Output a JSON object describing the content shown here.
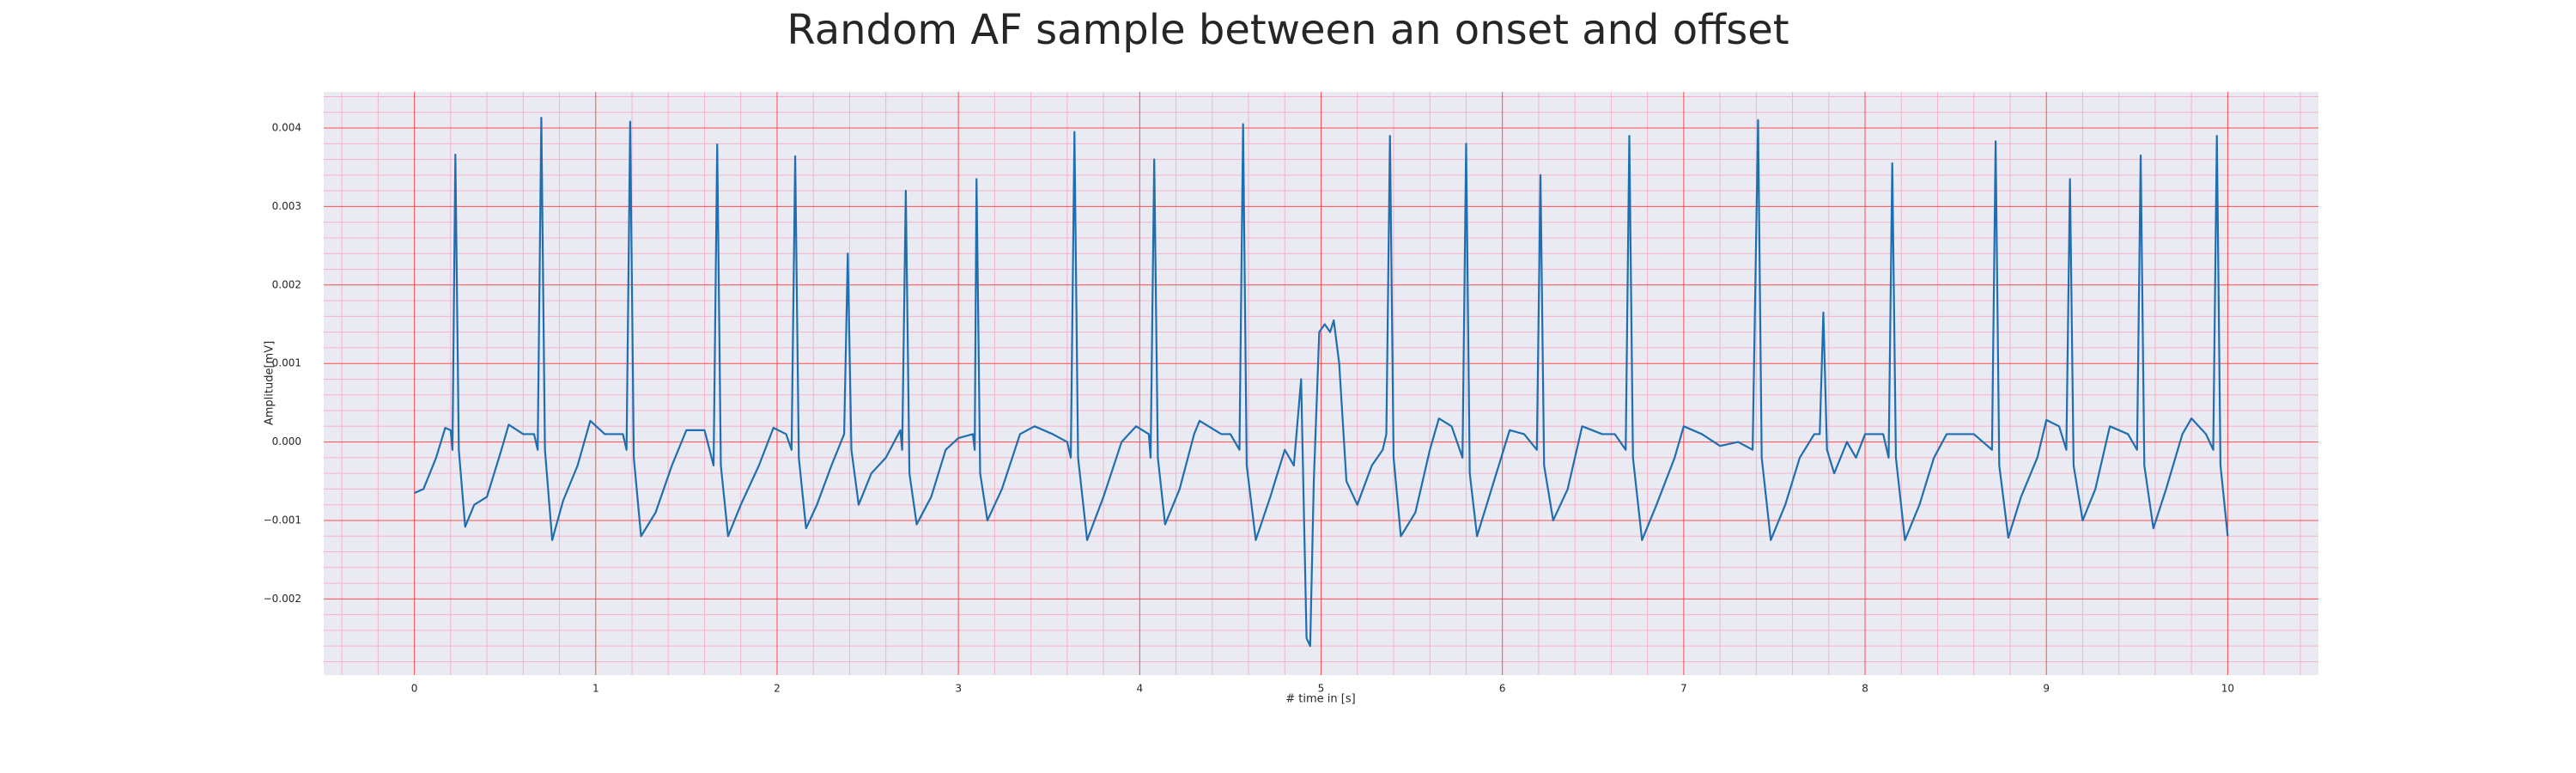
{
  "chart_data": {
    "type": "line",
    "title": "Random AF sample between an onset and offset",
    "x_label": "# time in [s]",
    "y_label": "Amplitude[mV]",
    "xlim": [
      -0.5,
      10.5
    ],
    "ylim": [
      -0.00297,
      0.00446
    ],
    "xticks": [
      0,
      1,
      2,
      3,
      4,
      5,
      6,
      7,
      8,
      9,
      10
    ],
    "yticks": [
      {
        "value": -0.002,
        "label": "−0.002"
      },
      {
        "value": -0.001,
        "label": "−0.001"
      },
      {
        "value": 0,
        "label": "0.000"
      },
      0.001,
      0.002,
      0.003,
      0.004
    ],
    "grid": true,
    "grid_color": "#ff4d4d",
    "minor_grid_divisions": 5,
    "minor_grid_color": "#f4b3c8",
    "background": "#eaeaf2",
    "series": [
      {
        "color": "#1f6fb0",
        "x": [
          0,
          0.05,
          0.12,
          0.17,
          0.2,
          0.21,
          0.226,
          0.245,
          0.28,
          0.33,
          0.4,
          0.48,
          0.52,
          0.6,
          0.66,
          0.68,
          0.7,
          0.72,
          0.76,
          0.82,
          0.9,
          0.97,
          1.05,
          1.15,
          1.17,
          1.19,
          1.21,
          1.25,
          1.33,
          1.42,
          1.5,
          1.6,
          1.65,
          1.67,
          1.69,
          1.73,
          1.8,
          1.9,
          1.98,
          2.05,
          2.08,
          2.1,
          2.12,
          2.16,
          2.22,
          2.3,
          2.37,
          2.39,
          2.41,
          2.45,
          2.52,
          2.6,
          2.68,
          2.69,
          2.71,
          2.73,
          2.77,
          2.85,
          2.93,
          3.0,
          3.08,
          3.09,
          3.1,
          3.12,
          3.16,
          3.24,
          3.34,
          3.42,
          3.52,
          3.6,
          3.62,
          3.64,
          3.66,
          3.71,
          3.8,
          3.9,
          3.98,
          4.05,
          4.06,
          4.08,
          4.1,
          4.14,
          4.22,
          4.3,
          4.33,
          4.45,
          4.5,
          4.55,
          4.57,
          4.59,
          4.64,
          4.72,
          4.8,
          4.85,
          4.89,
          4.92,
          4.94,
          4.96,
          4.99,
          5.02,
          5.05,
          5.07,
          5.1,
          5.14,
          5.2,
          5.28,
          5.34,
          5.36,
          5.38,
          5.4,
          5.44,
          5.52,
          5.6,
          5.65,
          5.72,
          5.78,
          5.8,
          5.82,
          5.86,
          5.94,
          6.04,
          6.12,
          6.19,
          6.21,
          6.23,
          6.28,
          6.36,
          6.44,
          6.55,
          6.62,
          6.68,
          6.7,
          6.72,
          6.77,
          6.85,
          6.95,
          7.0,
          7.1,
          7.2,
          7.3,
          7.38,
          7.41,
          7.43,
          7.48,
          7.56,
          7.64,
          7.72,
          7.75,
          7.77,
          7.79,
          7.83,
          7.9,
          7.95,
          8.0,
          8.1,
          8.13,
          8.15,
          8.17,
          8.22,
          8.3,
          8.38,
          8.45,
          8.6,
          8.7,
          8.72,
          8.74,
          8.79,
          8.86,
          8.95,
          9.0,
          9.07,
          9.11,
          9.13,
          9.15,
          9.2,
          9.27,
          9.35,
          9.45,
          9.5,
          9.52,
          9.54,
          9.59,
          9.66,
          9.75,
          9.8,
          9.88,
          9.92,
          9.94,
          9.96,
          10.0
        ],
        "values": [
          -0.00065,
          -0.0006,
          -0.0002,
          0.00018,
          0.00015,
          -0.0001,
          0.00366,
          -0.0001,
          -0.00108,
          -0.0008,
          -0.0007,
          -0.0001,
          0.00022,
          0.0001,
          0.0001,
          -0.0001,
          0.00413,
          -0.0001,
          -0.00125,
          -0.00075,
          -0.0003,
          0.00027,
          0.0001,
          0.0001,
          -0.0001,
          0.00408,
          -0.0002,
          -0.0012,
          -0.0009,
          -0.0003,
          0.00015,
          0.00015,
          -0.0003,
          0.00379,
          -0.0003,
          -0.0012,
          -0.0008,
          -0.0003,
          0.00018,
          0.0001,
          -0.0001,
          0.00364,
          -0.0002,
          -0.0011,
          -0.0008,
          -0.0003,
          0.0001,
          0.0024,
          -0.0001,
          -0.0008,
          -0.0004,
          -0.0002,
          0.00015,
          -0.0001,
          0.0032,
          -0.0004,
          -0.00105,
          -0.0007,
          -0.0001,
          5e-05,
          0.0001,
          -0.0001,
          0.00335,
          -0.0004,
          -0.001,
          -0.0006,
          0.0001,
          0.0002,
          0.0001,
          0.0,
          -0.0002,
          0.00395,
          -0.0002,
          -0.00125,
          -0.0007,
          0.0,
          0.0002,
          0.0001,
          -0.0002,
          0.0036,
          -0.0002,
          -0.00105,
          -0.0006,
          0.0001,
          0.00027,
          0.0001,
          0.0001,
          -0.0001,
          0.00405,
          -0.0003,
          -0.00125,
          -0.0007,
          -0.0001,
          -0.0003,
          0.0008,
          -0.0025,
          -0.0026,
          -0.0005,
          0.0014,
          0.0015,
          0.0014,
          0.00155,
          0.001,
          -0.0005,
          -0.0008,
          -0.0003,
          -0.0001,
          0.0001,
          0.0039,
          -0.0002,
          -0.0012,
          -0.0009,
          -0.0001,
          0.0003,
          0.0002,
          -0.0002,
          0.0038,
          -0.0004,
          -0.0012,
          -0.0006,
          0.00015,
          0.0001,
          -0.0001,
          0.0034,
          -0.0003,
          -0.001,
          -0.0006,
          0.0002,
          0.0001,
          0.0001,
          -0.0001,
          0.0039,
          -0.0002,
          -0.00125,
          -0.0008,
          -0.0002,
          0.0002,
          0.0001,
          -5e-05,
          0.0,
          -0.0001,
          0.0041,
          -0.0002,
          -0.00125,
          -0.0008,
          -0.0002,
          0.0001,
          0.0001,
          0.00165,
          -0.0001,
          -0.0004,
          0.0,
          -0.0002,
          0.0001,
          0.0001,
          -0.0002,
          0.00355,
          -0.0002,
          -0.00125,
          -0.0008,
          -0.0002,
          0.0001,
          0.0001,
          -0.0001,
          0.00383,
          -0.0003,
          -0.00122,
          -0.0007,
          -0.0002,
          0.00028,
          0.0002,
          -0.0001,
          0.00335,
          -0.0003,
          -0.001,
          -0.0006,
          0.0002,
          0.0001,
          -0.0001,
          0.00365,
          -0.0003,
          -0.0011,
          -0.0006,
          0.0001,
          0.0003,
          0.0001,
          -0.0001,
          0.0039,
          -0.0003,
          -0.0012
        ]
      }
    ]
  }
}
